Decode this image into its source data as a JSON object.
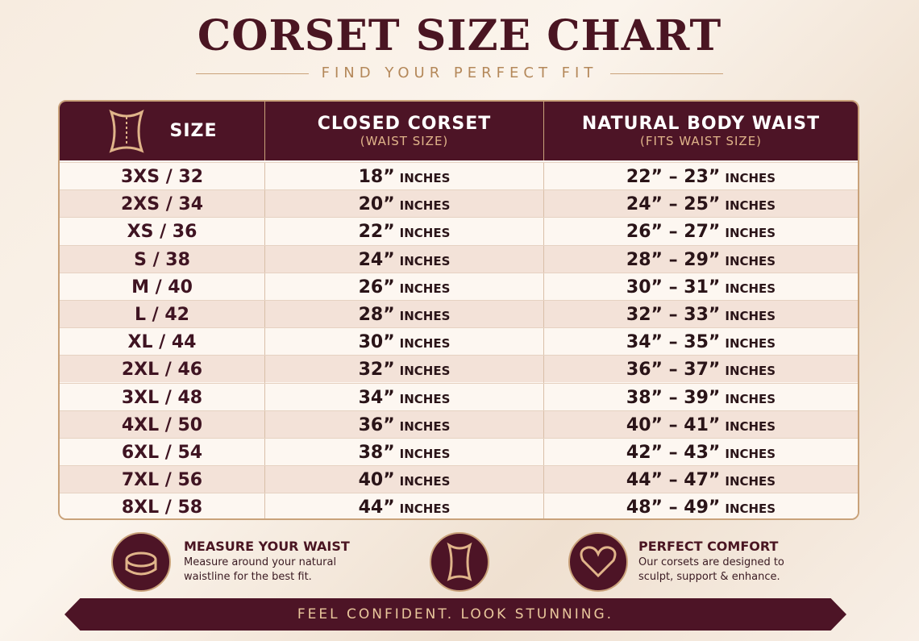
{
  "header": {
    "title": "CORSET SIZE CHART",
    "subtitle": "FIND YOUR PERFECT FIT"
  },
  "table": {
    "columns": [
      {
        "title": "SIZE"
      },
      {
        "title": "CLOSED CORSET",
        "subtitle": "(WAIST SIZE)"
      },
      {
        "title": "NATURAL BODY WAIST",
        "subtitle": "(FITS WAIST SIZE)"
      }
    ],
    "rows": [
      [
        "3XS / 32",
        {
          "value": "18”",
          "unit": "INCHES"
        },
        {
          "value": "22” – 23”",
          "unit": "INCHES"
        }
      ],
      [
        "2XS / 34",
        {
          "value": "20”",
          "unit": "INCHES"
        },
        {
          "value": "24” – 25”",
          "unit": "INCHES"
        }
      ],
      [
        "XS / 36",
        {
          "value": "22”",
          "unit": "INCHES"
        },
        {
          "value": "26” – 27”",
          "unit": "INCHES"
        }
      ],
      [
        "S / 38",
        {
          "value": "24”",
          "unit": "INCHES"
        },
        {
          "value": "28” – 29”",
          "unit": "INCHES"
        }
      ],
      [
        "M / 40",
        {
          "value": "26”",
          "unit": "INCHES"
        },
        {
          "value": "30” – 31”",
          "unit": "INCHES"
        }
      ],
      [
        "L / 42",
        {
          "value": "28”",
          "unit": "INCHES"
        },
        {
          "value": "32” – 33”",
          "unit": "INCHES"
        }
      ],
      [
        "XL / 44",
        {
          "value": "30”",
          "unit": "INCHES"
        },
        {
          "value": "34” – 35”",
          "unit": "INCHES"
        }
      ],
      [
        "2XL / 46",
        {
          "value": "32”",
          "unit": "INCHES"
        },
        {
          "value": "36” – 37”",
          "unit": "INCHES"
        }
      ],
      [
        "3XL / 48",
        {
          "value": "34”",
          "unit": "INCHES"
        },
        {
          "value": "38” – 39”",
          "unit": "INCHES"
        }
      ],
      [
        "4XL / 50",
        {
          "value": "36”",
          "unit": "INCHES"
        },
        {
          "value": "40” – 41”",
          "unit": "INCHES"
        }
      ],
      [
        "6XL / 54",
        {
          "value": "38”",
          "unit": "INCHES"
        },
        {
          "value": "42” – 43”",
          "unit": "INCHES"
        }
      ],
      [
        "7XL / 56",
        {
          "value": "40”",
          "unit": "INCHES"
        },
        {
          "value": "44” – 47”",
          "unit": "INCHES"
        }
      ],
      [
        "8XL / 58",
        {
          "value": "44”",
          "unit": "INCHES"
        },
        {
          "value": "48” – 49”",
          "unit": "INCHES"
        }
      ]
    ]
  },
  "tips": [
    {
      "title": "MEASURE YOUR WAIST",
      "text": "Measure around your natural waistline for the best fit."
    },
    {
      "title": "PERFECT COMFORT",
      "text": "Our corsets are designed to sculpt, support & enhance."
    }
  ],
  "banner": "FEEL CONFIDENT. LOOK STUNNING."
}
